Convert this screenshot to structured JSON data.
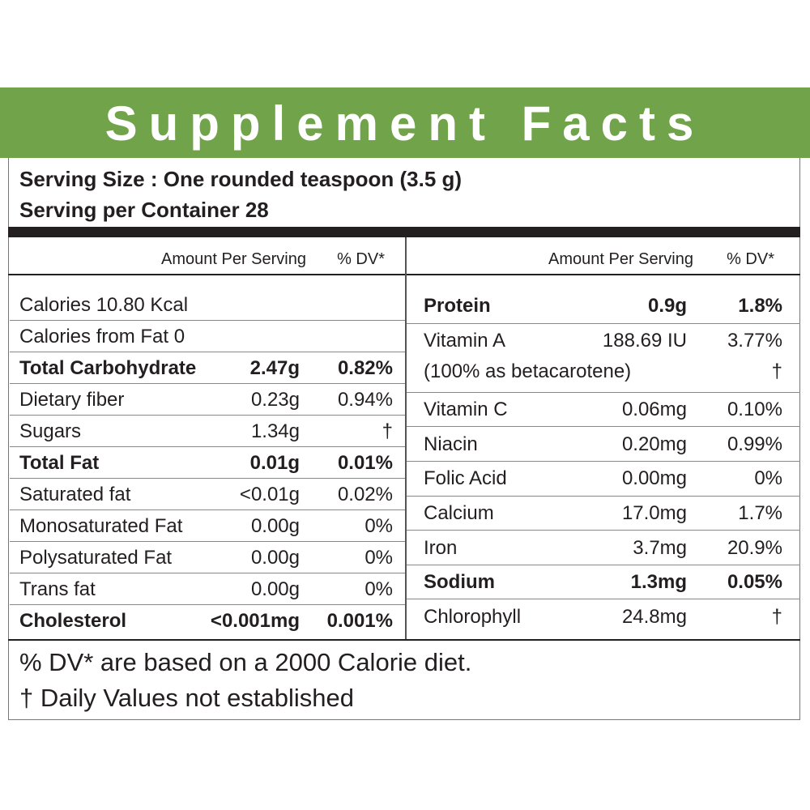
{
  "header": {
    "title": "Supplement Facts"
  },
  "serving": {
    "size": "Serving Size : One rounded teaspoon (3.5 g)",
    "per_container": "Serving per Container 28"
  },
  "left": {
    "col_amount": "Amount Per Serving",
    "col_dv": "% DV*",
    "rows": [
      {
        "name": "Calories 10.80 Kcal"
      },
      {
        "name": "Calories from Fat 0"
      },
      {
        "name": "Total Carbohydrate",
        "amount": "2.47g",
        "dv": "0.82%",
        "bold": true
      },
      {
        "name": "Dietary fiber",
        "amount": "0.23g",
        "dv": "0.94%"
      },
      {
        "name": "Sugars",
        "amount": "1.34g",
        "dv": "†"
      },
      {
        "name": "Total Fat",
        "amount": "0.01g",
        "dv": "0.01%",
        "bold": true
      },
      {
        "name": "Saturated fat",
        "amount": "<0.01g",
        "dv": "0.02%"
      },
      {
        "name": "Monosaturated Fat",
        "amount": "0.00g",
        "dv": "0%"
      },
      {
        "name": "Polysaturated Fat",
        "amount": "0.00g",
        "dv": "0%"
      },
      {
        "name": "Trans fat",
        "amount": "0.00g",
        "dv": "0%"
      },
      {
        "name": "Cholesterol",
        "amount": "<0.001mg",
        "dv": "0.001%",
        "bold": true
      }
    ]
  },
  "right": {
    "col_amount": "Amount Per Serving",
    "col_dv": "% DV*",
    "rows": [
      {
        "name": "Protein",
        "amount": "0.9g",
        "dv": "1.8%",
        "bold": true
      },
      {
        "name": "Vitamin A",
        "amount": "188.69 IU",
        "dv": "3.77%",
        "note": "(100% as betacarotene)",
        "note_dv": "†"
      },
      {
        "name": "Vitamin C",
        "amount": "0.06mg",
        "dv": "0.10%"
      },
      {
        "name": "Niacin",
        "amount": "0.20mg",
        "dv": "0.99%"
      },
      {
        "name": "Folic Acid",
        "amount": "0.00mg",
        "dv": "0%"
      },
      {
        "name": "Calcium",
        "amount": "17.0mg",
        "dv": "1.7%"
      },
      {
        "name": "Iron",
        "amount": "3.7mg",
        "dv": "20.9%"
      },
      {
        "name": "Sodium",
        "amount": "1.3mg",
        "dv": "0.05%",
        "bold": true
      },
      {
        "name": "Chlorophyll",
        "amount": "24.8mg",
        "dv": "†"
      }
    ]
  },
  "footer": {
    "line1": "% DV* are based on a 2000 Calorie diet.",
    "line2": "† Daily Values not established"
  }
}
